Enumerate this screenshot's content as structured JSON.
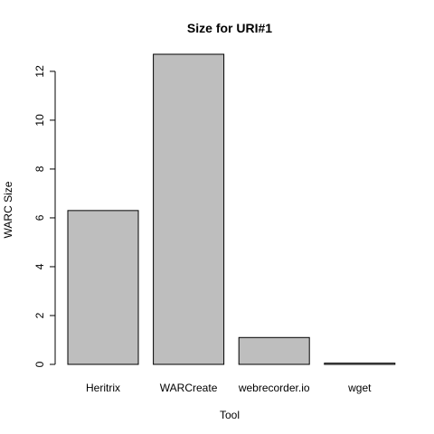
{
  "chart_data": {
    "type": "bar",
    "title": "Size for URI#1",
    "xlabel": "Tool",
    "ylabel": "WARC Size",
    "categories": [
      "Heritrix",
      "WARCreate",
      "webrecorder.io",
      "wget"
    ],
    "values": [
      6.3,
      12.7,
      1.1,
      0.05
    ],
    "ylim": [
      0,
      12.7
    ],
    "yticks": [
      0,
      2,
      4,
      6,
      8,
      10,
      12
    ],
    "grid": false,
    "bar_fill": "#bebebe",
    "bar_stroke": "#000000"
  }
}
